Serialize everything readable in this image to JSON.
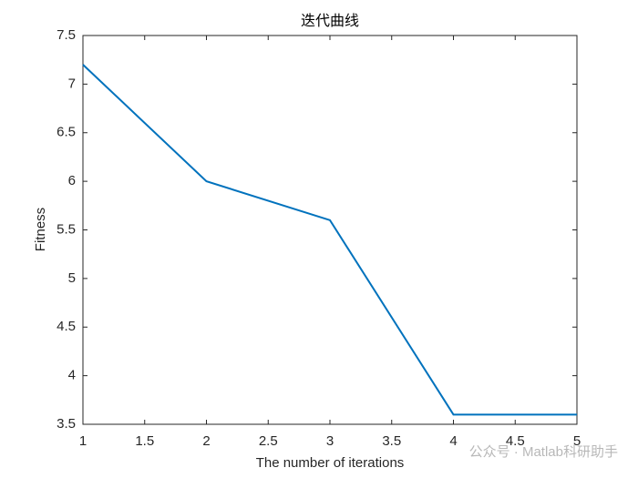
{
  "chart_data": {
    "type": "line",
    "title": "迭代曲线",
    "x_label": "The number of iterations",
    "y_label": "Fitness",
    "x": [
      1,
      2,
      3,
      4,
      5
    ],
    "series": [
      {
        "name": "Fitness",
        "color": "#0072bd",
        "values": [
          7.2,
          6.0,
          5.6,
          3.6,
          3.6
        ]
      }
    ],
    "xlim": [
      1,
      5
    ],
    "xticks": [
      1,
      1.5,
      2,
      2.5,
      3,
      3.5,
      4,
      4.5,
      5
    ],
    "ylim": [
      3.5,
      7.5
    ],
    "yticks": [
      3.5,
      4,
      4.5,
      5,
      5.5,
      6,
      6.5,
      7,
      7.5
    ],
    "grid": false
  },
  "watermark": "公众号 · Matlab科研助手"
}
